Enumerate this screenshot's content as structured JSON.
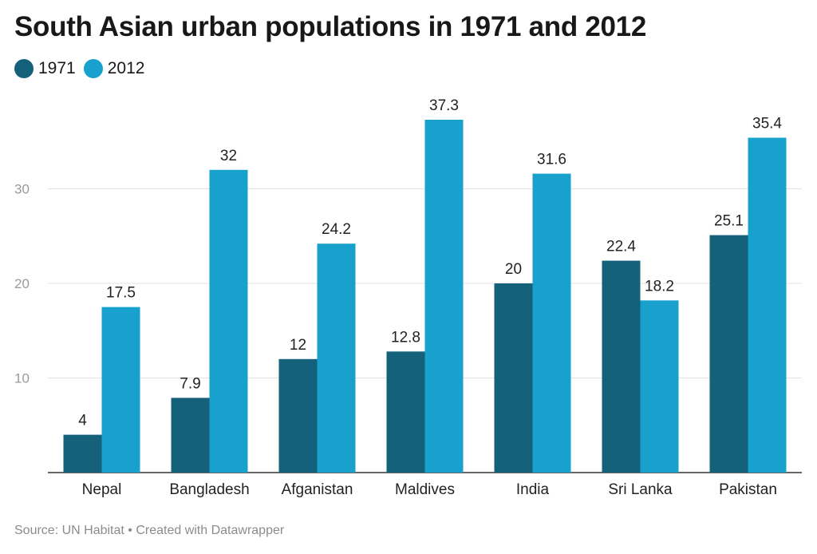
{
  "chart_data": {
    "type": "bar",
    "title": "South Asian urban populations in 1971 and 2012",
    "categories": [
      "Nepal",
      "Bangladesh",
      "Afganistan",
      "Maldives",
      "India",
      "Sri Lanka",
      "Pakistan"
    ],
    "series": [
      {
        "name": "1971",
        "color": "#15607a",
        "values": [
          4,
          7.9,
          12,
          12.8,
          20,
          22.4,
          25.1
        ]
      },
      {
        "name": "2012",
        "color": "#18a1cd",
        "values": [
          17.5,
          32,
          24.2,
          37.3,
          31.6,
          18.2,
          35.4
        ]
      }
    ],
    "yticks": [
      10,
      20,
      30
    ],
    "ylim": [
      0,
      40
    ],
    "grid": true,
    "legend_position": "top-left",
    "source": "Source: UN Habitat • Created with Datawrapper"
  }
}
